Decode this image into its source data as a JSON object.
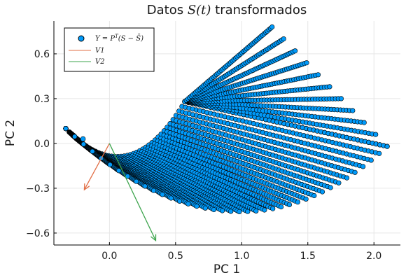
{
  "chart_data": {
    "type": "scatter",
    "title": {
      "prefix": "Datos ",
      "math": "S(t)",
      "suffix": " transformados"
    },
    "xlabel": "PC 1",
    "ylabel": "PC 2",
    "xlim": [
      -0.42,
      2.2
    ],
    "ylim": [
      -0.68,
      0.82
    ],
    "xticks": [
      0.0,
      0.5,
      1.0,
      1.5,
      2.0
    ],
    "xtick_labels": [
      "0.0",
      "0.5",
      "1.0",
      "1.5",
      "2.0"
    ],
    "yticks": [
      -0.6,
      -0.3,
      0.0,
      0.3,
      0.6
    ],
    "ytick_labels": [
      "−0.6",
      "−0.3",
      "0.0",
      "0.3",
      "0.6"
    ],
    "grid": true,
    "legend_position": "top-left",
    "series": [
      {
        "name": "Y = P^T(S − S̄)",
        "kind": "scatter",
        "color": "#009AFA",
        "edge_color": "#000000",
        "description_of_shape": "dense family of curved point-strips forming a fan/crescent",
        "strips": {
          "count": 56,
          "start_point": [
            -0.33,
            0.1
          ],
          "inner_end": [
            0.57,
            0.28
          ],
          "outer_end": [
            2.1,
            -0.01
          ],
          "upper_ends_top": [
            [
              1.23,
              0.79
            ],
            [
              2.1,
              0.0
            ]
          ]
        },
        "highlighted_point": [
          -0.2,
          0.03
        ]
      },
      {
        "name": "V1",
        "kind": "arrow",
        "color": "#E26F46",
        "from": [
          0.0,
          0.0
        ],
        "to": [
          -0.19,
          -0.31
        ]
      },
      {
        "name": "V2",
        "kind": "arrow",
        "color": "#3DA44D",
        "from": [
          0.0,
          0.0
        ],
        "to": [
          0.35,
          -0.65
        ]
      }
    ]
  },
  "legend": {
    "entries": [
      {
        "label": "Y = P",
        "sup": "T",
        "rest": "(S − S̄)"
      },
      {
        "label": "V1"
      },
      {
        "label": "V2"
      }
    ]
  }
}
